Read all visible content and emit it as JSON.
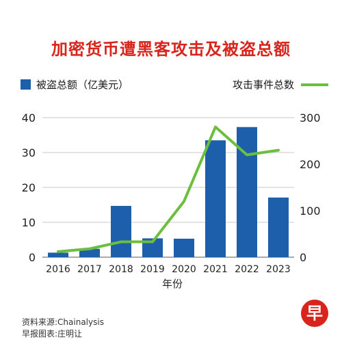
{
  "title": "加密货币遭黑客攻击及被盗总额",
  "legend": {
    "bars": "被盗总额（亿美元）",
    "line": "攻击事件总数"
  },
  "footer": {
    "source": "资料来源:Chainalysis",
    "credit": "早报图表:庄明让"
  },
  "logo_char": "早",
  "colors": {
    "bar": "#1d5fab",
    "line": "#6cbf3e",
    "title": "#d9241c"
  },
  "chart_data": {
    "type": "bar",
    "title": "加密货币遭黑客攻击及被盗总额",
    "xlabel": "年份",
    "categories": [
      "2016",
      "2017",
      "2018",
      "2019",
      "2020",
      "2021",
      "2022",
      "2023"
    ],
    "series": [
      {
        "name": "被盗总额（亿美元）",
        "type": "bar",
        "axis": "left",
        "values": [
          1.3,
          2.4,
          14.7,
          5.4,
          5.3,
          33.5,
          37.3,
          17.1
        ]
      },
      {
        "name": "攻击事件总数",
        "type": "line",
        "axis": "right",
        "values": [
          12,
          18,
          33,
          33,
          120,
          280,
          220,
          230
        ]
      }
    ],
    "ylim_left": [
      0,
      40
    ],
    "yticks_left": [
      0,
      10,
      20,
      30,
      40
    ],
    "ylim_right": [
      0,
      300
    ],
    "yticks_right": [
      0,
      100,
      200,
      300
    ],
    "grid": true,
    "legend_position": "top"
  }
}
